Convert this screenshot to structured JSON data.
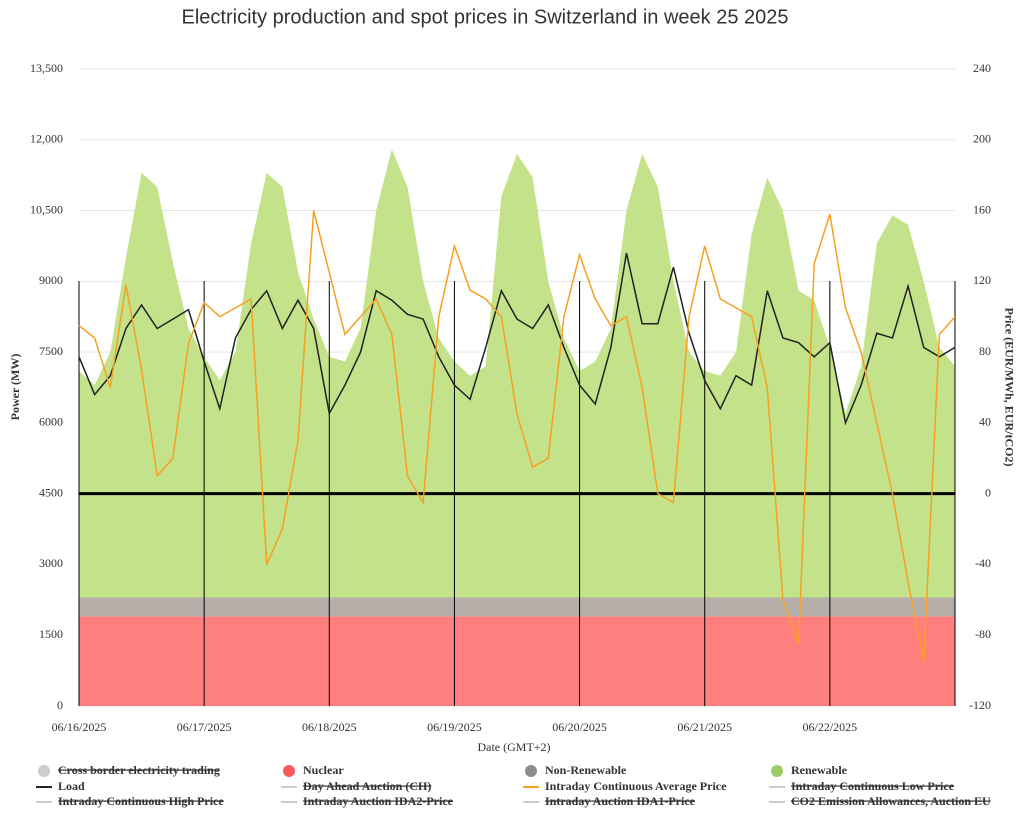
{
  "chart_data": {
    "type": "stacked-area-line",
    "title": "Electricity production and spot prices in Switzerland in week 25 2025",
    "x_label": "Date (GMT+2)",
    "y_label": "Power (MW)",
    "y2_label": "Price (EUR/MWh, EUR/tCO2)",
    "x": [
      0,
      3,
      6,
      9,
      12,
      15,
      18,
      21,
      24,
      27,
      30,
      33,
      36,
      39,
      42,
      45,
      48,
      51,
      54,
      57,
      60,
      63,
      66,
      69,
      72,
      75,
      78,
      81,
      84,
      87,
      90,
      93,
      96,
      99,
      102,
      105,
      108,
      111,
      114,
      117,
      120,
      123,
      126,
      129,
      132,
      135,
      138,
      141,
      144,
      147,
      150,
      153,
      156,
      159,
      162,
      165,
      168
    ],
    "xlim": [
      0,
      168
    ],
    "xticks": [
      {
        "value": 0,
        "label": "06/16/2025"
      },
      {
        "value": 24,
        "label": "06/17/2025"
      },
      {
        "value": 48,
        "label": "06/18/2025"
      },
      {
        "value": 72,
        "label": "06/19/2025"
      },
      {
        "value": 96,
        "label": "06/20/2025"
      },
      {
        "value": 120,
        "label": "06/21/2025"
      },
      {
        "value": 144,
        "label": "06/22/2025"
      }
    ],
    "ylim": [
      0,
      13500
    ],
    "yticks": [
      0,
      1500,
      3000,
      4500,
      6000,
      7500,
      9000,
      {
        "value": 10500,
        "label": "10,500"
      },
      {
        "value": 12000,
        "label": "12,000"
      },
      {
        "value": 13500,
        "label": "13,500"
      }
    ],
    "y2lim": [
      -120,
      240
    ],
    "y2ticks": [
      -120,
      -80,
      -40,
      0,
      40,
      80,
      120,
      160,
      200,
      240
    ],
    "grid": true,
    "y2_zero_line": true,
    "series": [
      {
        "name": "Nuclear",
        "kind": "area",
        "color": "#ff7f7f",
        "marker_color": "#f45b5b",
        "values": [
          1900,
          1900,
          1900,
          1900,
          1900,
          1900,
          1900,
          1900,
          1900,
          1900,
          1900,
          1900,
          1900,
          1900,
          1900,
          1900,
          1900,
          1900,
          1900,
          1900,
          1900,
          1900,
          1900,
          1900,
          1900,
          1900,
          1900,
          1900,
          1900,
          1900,
          1900,
          1900,
          1900,
          1900,
          1900,
          1900,
          1900,
          1900,
          1900,
          1900,
          1900,
          1900,
          1900,
          1900,
          1900,
          1900,
          1900,
          1900,
          1900,
          1900,
          1900,
          1900,
          1900,
          1900,
          1900,
          1900,
          1900
        ]
      },
      {
        "name": "Non-Renewable",
        "kind": "area",
        "color": "#b5aea8",
        "marker_color": "#8d8d8d",
        "values": [
          400,
          400,
          400,
          400,
          400,
          400,
          400,
          400,
          400,
          400,
          400,
          400,
          400,
          400,
          400,
          400,
          400,
          400,
          400,
          400,
          400,
          400,
          400,
          400,
          400,
          400,
          400,
          400,
          400,
          400,
          400,
          400,
          400,
          400,
          400,
          400,
          400,
          400,
          400,
          400,
          400,
          400,
          400,
          400,
          400,
          400,
          400,
          400,
          400,
          400,
          400,
          400,
          400,
          400,
          400,
          400,
          400
        ]
      },
      {
        "name": "Renewable",
        "kind": "area",
        "color": "#c3e28a",
        "marker_color": "#9ccc65",
        "values": [
          4800,
          4500,
          5200,
          7200,
          9000,
          8700,
          7100,
          5700,
          5100,
          4600,
          5200,
          7500,
          9000,
          8700,
          6900,
          5900,
          5100,
          5000,
          5700,
          8200,
          9500,
          8700,
          6700,
          5500,
          5000,
          4700,
          4900,
          8500,
          9400,
          8900,
          6700,
          5500,
          4800,
          5000,
          5700,
          8200,
          9400,
          8700,
          6700,
          5200,
          4800,
          4700,
          5200,
          7700,
          8900,
          8200,
          6500,
          6300,
          5300,
          3900,
          4900,
          7500,
          8100,
          7900,
          6700,
          5300,
          4900
        ]
      },
      {
        "name": "Load",
        "kind": "line",
        "color": "#222222",
        "marker_color": "#222222",
        "values": [
          7400,
          6600,
          7000,
          8000,
          8500,
          8000,
          8200,
          8400,
          7300,
          6300,
          7800,
          8400,
          8800,
          8000,
          8600,
          8000,
          6200,
          6800,
          7500,
          8800,
          8600,
          8300,
          8200,
          7400,
          6800,
          6500,
          7600,
          8800,
          8200,
          8000,
          8500,
          7600,
          6800,
          6400,
          7600,
          9600,
          8100,
          8100,
          9300,
          7900,
          6900,
          6300,
          7000,
          6800,
          8800,
          7800,
          7700,
          7400,
          7700,
          6000,
          6800,
          7900,
          7800,
          8900,
          7600,
          7400,
          7600
        ]
      },
      {
        "name": "Intraday Continuous Average Price",
        "kind": "line",
        "axis": "y2",
        "color": "#f7a021",
        "marker_color": "#f7a021",
        "values": [
          95,
          88,
          60,
          118,
          70,
          10,
          20,
          85,
          108,
          100,
          105,
          110,
          -40,
          -20,
          30,
          160,
          125,
          90,
          100,
          110,
          90,
          10,
          -5,
          100,
          140,
          115,
          110,
          100,
          45,
          15,
          20,
          100,
          135,
          110,
          95,
          100,
          60,
          0,
          -5,
          100,
          140,
          110,
          105,
          100,
          60,
          -60,
          -85,
          130,
          158,
          105,
          80,
          40,
          0,
          -50,
          -95,
          90,
          100
        ]
      }
    ],
    "hidden_series": [
      {
        "name": "Cross border electricity trading",
        "symbol": "circle"
      },
      {
        "name": "Day Ahead Auction (CH)",
        "symbol": "line"
      },
      {
        "name": "Intraday Continuous Low Price",
        "symbol": "line"
      },
      {
        "name": "Intraday Continuous High Price",
        "symbol": "line"
      },
      {
        "name": "Intraday Auction IDA2-Price",
        "symbol": "line"
      },
      {
        "name": "Intraday Auction IDA1-Price",
        "symbol": "line"
      },
      {
        "name": "CO2 Emission Allowances, Auction EU",
        "symbol": "line"
      }
    ]
  }
}
